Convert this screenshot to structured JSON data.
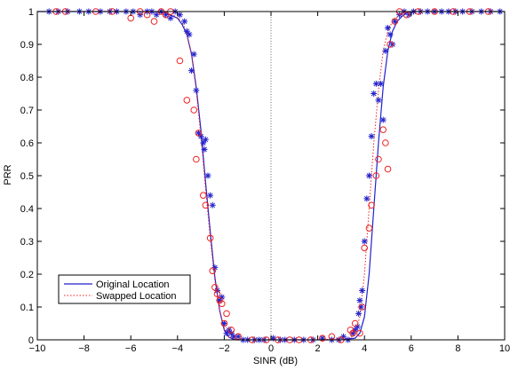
{
  "chart_data": {
    "type": "scatter",
    "xlabel": "SINR (dB)",
    "ylabel": "PRR",
    "xlim": [
      -10,
      10
    ],
    "ylim": [
      0,
      1
    ],
    "x_ticks": [
      -10,
      -8,
      -6,
      -4,
      -2,
      0,
      2,
      4,
      6,
      8,
      10
    ],
    "x_tick_labels": [
      "−10",
      "−8",
      "−6",
      "−4",
      "−2",
      "0",
      "2",
      "4",
      "6",
      "8",
      "10"
    ],
    "y_ticks": [
      0,
      0.1,
      0.2,
      0.3,
      0.4,
      0.5,
      0.6,
      0.7,
      0.8,
      0.9,
      1
    ],
    "y_tick_labels": [
      "0",
      "0.1",
      "0.2",
      "0.3",
      "0.4",
      "0.5",
      "0.6",
      "0.7",
      "0.8",
      "0.9",
      "1"
    ],
    "grid": false,
    "legend_position": "bottom-left",
    "vertical_reference_line": {
      "x": 0,
      "style": "dotted",
      "color": "#6c6c6c"
    },
    "colors": {
      "original": "#2222cc",
      "swapped": "#ee2222"
    },
    "series": [
      {
        "name": "Original Location",
        "kind": "line",
        "style": "solid",
        "color": "#2222cc",
        "x": [
          -10,
          -5,
          -4.5,
          -4,
          -3.8,
          -3.6,
          -3.4,
          -3.2,
          -3.0,
          -2.8,
          -2.6,
          -2.4,
          -2.2,
          -2.0,
          -1.8,
          -1.6,
          -1.5,
          -1,
          0,
          1,
          2,
          3,
          3.6,
          3.8,
          4.0,
          4.2,
          4.4,
          4.6,
          4.8,
          5.0,
          5.2,
          5.4,
          5.6,
          5.8,
          6.0,
          7,
          8,
          10
        ],
        "y": [
          1,
          1,
          0.995,
          0.98,
          0.96,
          0.93,
          0.87,
          0.77,
          0.64,
          0.48,
          0.33,
          0.19,
          0.09,
          0.03,
          0.008,
          0.002,
          0,
          0,
          0,
          0,
          0,
          0,
          0.005,
          0.02,
          0.07,
          0.2,
          0.4,
          0.6,
          0.77,
          0.88,
          0.94,
          0.97,
          0.985,
          0.995,
          1,
          1,
          1,
          1
        ]
      },
      {
        "name": "Swapped Location",
        "kind": "line",
        "style": "dotted",
        "color": "#ee2222",
        "x": [
          -10,
          -5,
          -4.2,
          -3.8,
          -3.6,
          -3.4,
          -3.2,
          -3.0,
          -2.8,
          -2.6,
          -2.4,
          -2.2,
          -2.0,
          -1.8,
          -1.6,
          -1.4,
          -1.2,
          0,
          2,
          3.4,
          3.6,
          3.8,
          4.0,
          4.2,
          4.4,
          4.6,
          4.8,
          5.0,
          5.2,
          5.5,
          6,
          8,
          10
        ],
        "y": [
          1,
          1,
          0.99,
          0.97,
          0.93,
          0.87,
          0.76,
          0.62,
          0.46,
          0.31,
          0.18,
          0.09,
          0.035,
          0.01,
          0.003,
          0.001,
          0,
          0,
          0,
          0.005,
          0.02,
          0.07,
          0.2,
          0.4,
          0.6,
          0.76,
          0.88,
          0.94,
          0.97,
          0.99,
          1,
          1,
          1
        ]
      },
      {
        "name": "Original Location samples",
        "kind": "points",
        "marker": "asterisk",
        "color": "#2222cc",
        "x": [
          -9.5,
          -9.1,
          -8.7,
          -8.2,
          -7.8,
          -7.3,
          -6.9,
          -6.6,
          -6.2,
          -5.9,
          -5.6,
          -5.3,
          -5.1,
          -4.9,
          -4.7,
          -4.5,
          -4.3,
          -4.1,
          -3.9,
          -3.7,
          -3.6,
          -3.5,
          -3.4,
          -3.3,
          -3.2,
          -3.1,
          -3.0,
          -2.9,
          -2.85,
          -2.8,
          -2.7,
          -2.6,
          -2.5,
          -2.4,
          -2.3,
          -2.2,
          -2.1,
          -2.0,
          -1.9,
          -1.8,
          -1.7,
          -1.6,
          -1.4,
          -1.2,
          -1.0,
          -0.7,
          -0.5,
          -0.3,
          0.1,
          0.4,
          0.6,
          1.0,
          1.4,
          1.8,
          2.2,
          2.6,
          2.9,
          3.1,
          3.3,
          3.5,
          3.6,
          3.7,
          3.75,
          3.8,
          3.85,
          3.9,
          4.0,
          4.1,
          4.2,
          4.3,
          4.4,
          4.5,
          4.6,
          4.7,
          4.8,
          4.9,
          5.0,
          5.1,
          5.2,
          5.3,
          5.5,
          5.7,
          5.9,
          6.1,
          6.4,
          6.7,
          7.0,
          7.3,
          7.6,
          7.9,
          8.2,
          8.6,
          9.0,
          9.4,
          9.8
        ],
        "y": [
          1,
          1,
          1,
          1,
          1,
          1,
          1,
          1,
          1,
          1,
          0.99,
          1,
          1,
          0.99,
          1,
          0.99,
          0.98,
          1,
          0.99,
          0.97,
          0.94,
          0.93,
          0.82,
          0.87,
          0.76,
          0.63,
          0.62,
          0.6,
          0.58,
          0.61,
          0.5,
          0.44,
          0.41,
          0.22,
          0.15,
          0.12,
          0.13,
          0.05,
          0.02,
          0.03,
          0.02,
          0.01,
          0.01,
          0,
          0,
          0,
          0,
          0,
          0.005,
          0,
          0,
          0,
          0,
          0,
          0.005,
          0,
          0,
          0.01,
          0,
          0.02,
          0.03,
          0.04,
          0.08,
          0.12,
          0.1,
          0.15,
          0.3,
          0.43,
          0.5,
          0.62,
          0.75,
          0.78,
          0.73,
          0.78,
          0.67,
          0.88,
          0.95,
          0.93,
          0.9,
          0.97,
          0.99,
          1,
          0.99,
          1,
          1,
          1,
          1,
          1,
          1,
          1,
          1,
          1,
          1,
          1,
          1
        ]
      },
      {
        "name": "Swapped Location samples",
        "kind": "points",
        "marker": "circle",
        "color": "#ee2222",
        "x": [
          -9.2,
          -8.8,
          -7.5,
          -6.8,
          -6.0,
          -5.6,
          -5.3,
          -5.0,
          -4.7,
          -4.5,
          -4.3,
          -3.9,
          -3.6,
          -3.3,
          -3.2,
          -3.1,
          -2.9,
          -2.8,
          -2.6,
          -2.5,
          -2.4,
          -2.3,
          -2.2,
          -2.1,
          -2.0,
          -1.9,
          -1.7,
          -1.4,
          -0.8,
          -0.2,
          0.3,
          0.8,
          1.2,
          1.7,
          2.2,
          2.6,
          3.0,
          3.4,
          3.5,
          3.6,
          3.8,
          3.9,
          4.0,
          4.2,
          4.3,
          4.5,
          4.6,
          4.8,
          4.9,
          5.0,
          5.1,
          5.3,
          5.5,
          5.8,
          6.3,
          7.0,
          7.8,
          8.5,
          9.3
        ],
        "y": [
          1,
          1,
          1,
          1,
          0.98,
          1,
          0.99,
          0.97,
          1,
          0.99,
          1,
          0.85,
          0.73,
          0.7,
          0.55,
          0.63,
          0.44,
          0.41,
          0.31,
          0.21,
          0.16,
          0.14,
          0.12,
          0.11,
          0.05,
          0.08,
          0.03,
          0.01,
          0,
          0,
          0,
          0,
          0,
          0,
          0.005,
          0.01,
          0,
          0.03,
          0.02,
          0.05,
          0.02,
          0.1,
          0.28,
          0.34,
          0.41,
          0.5,
          0.55,
          0.64,
          0.6,
          0.52,
          0.9,
          0.97,
          1,
          0.99,
          1,
          1,
          1,
          1,
          1
        ]
      }
    ]
  }
}
